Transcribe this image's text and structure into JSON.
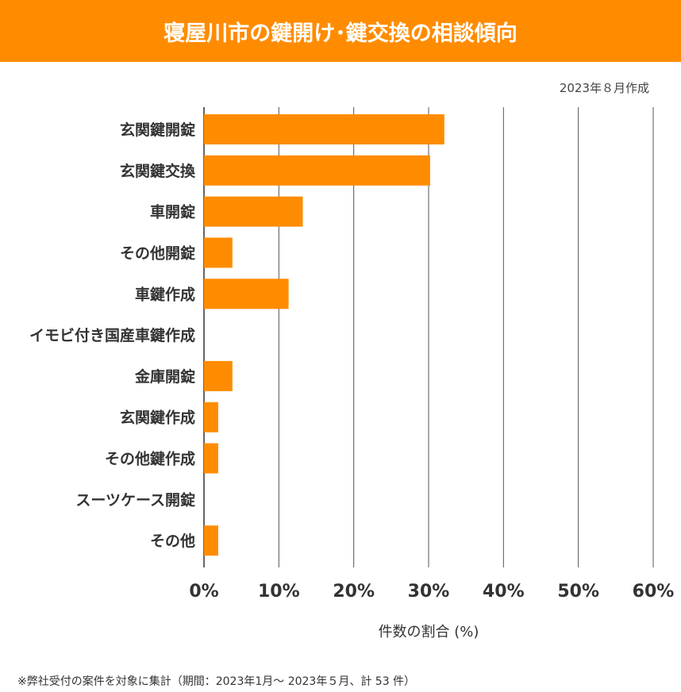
{
  "header": {
    "title": "寝屋川市の鍵開け･鍵交換の相談傾向"
  },
  "date_label": "2023年８月作成",
  "footnote": "※弊社受付の案件を対象に集計（期間：2023年1月～ 2023年５月、計 53 件）",
  "colors": {
    "bar": "#ff8c00",
    "header": "#ff8c00",
    "grid": "#555555"
  },
  "chart_data": {
    "type": "bar",
    "orientation": "horizontal",
    "categories": [
      "玄関鍵開錠",
      "玄関鍵交換",
      "車開錠",
      "その他開錠",
      "車鍵作成",
      "イモビ付き国産車鍵作成",
      "金庫開錠",
      "玄関鍵作成",
      "その他鍵作成",
      "スーツケース開錠",
      "その他"
    ],
    "values": [
      32.1,
      30.2,
      13.2,
      3.8,
      11.3,
      0,
      3.8,
      1.9,
      1.9,
      0,
      1.9
    ],
    "xlabel": "件数の割合 (%)",
    "ylabel": "",
    "xlim": [
      0,
      60
    ],
    "xticks": [
      "0%",
      "10%",
      "20%",
      "30%",
      "40%",
      "50%",
      "60%"
    ],
    "grid": "vertical"
  }
}
